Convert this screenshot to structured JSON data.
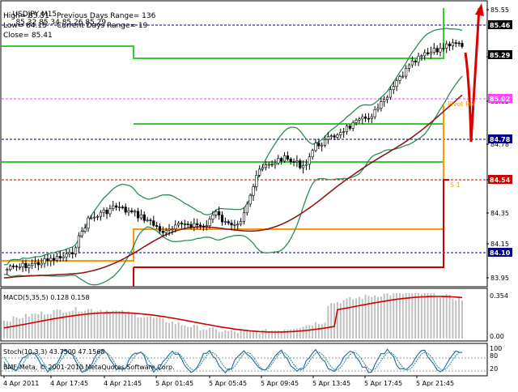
{
  "symbol": "USDJPY,M15",
  "ohlc": "85.32 85.34 85.26 85.29",
  "info": {
    "high": "High= 85.51",
    "low": "Low= 84.15",
    "close": "Close= 85.41",
    "prev_range": "Previous Days Range= 136",
    "curr_range": "Current Days Range= 19"
  },
  "price_scale": [
    "85.55",
    "85.29",
    "85.02",
    "84.78",
    "84.54",
    "84.35",
    "84.15",
    "83.95"
  ],
  "price_tags": [
    {
      "text": "85.46",
      "bg": "#000000",
      "fg": "#ffffff"
    },
    {
      "text": "85.29",
      "bg": "#000000",
      "fg": "#ffffff"
    },
    {
      "text": "85.02",
      "bg": "#ff44ff",
      "fg": "#ffffff"
    },
    {
      "text": "84.78",
      "bg": "#000080",
      "fg": "#ffffff"
    },
    {
      "text": "84.54",
      "bg": "#cc0000",
      "fg": "#ffffff"
    },
    {
      "text": "84.10",
      "bg": "#000080",
      "fg": "#ffffff"
    }
  ],
  "level_labels": {
    "pivot": "Pivot Poi",
    "s1": "S 1"
  },
  "macd": {
    "label": "MACD(5,35,5) 0.128 0.158",
    "scale": [
      "0.354",
      "0.00"
    ]
  },
  "stoch": {
    "label": "Stoch(10,3,3) 43.7500 47.1568",
    "scale": [
      "100",
      "80",
      "20"
    ]
  },
  "copyright": "BMF-Meta, © 2001-2010 MetaQuotes Software Corp.",
  "time_labels": [
    "4 Apr 2011",
    "4 Apr 17:45",
    "4 Apr 21:45",
    "5 Apr 01:45",
    "5 Apr 05:45",
    "5 Apr 09:45",
    "5 Apr 13:45",
    "5 Apr 17:45",
    "5 Apr 21:45"
  ],
  "colors": {
    "bull": "#000000",
    "bear": "#000000",
    "bollinger": "#2e8b57",
    "ma": "#8b1a1a",
    "pivot": "#ff9900",
    "s1": "#cc0000",
    "r1": "#33cc33",
    "macd_hist": "#c0c0c0",
    "macd_signal": "#cc0000",
    "stoch_main": "#1e6aa0",
    "stoch_signal": "#2a8a8a"
  }
}
